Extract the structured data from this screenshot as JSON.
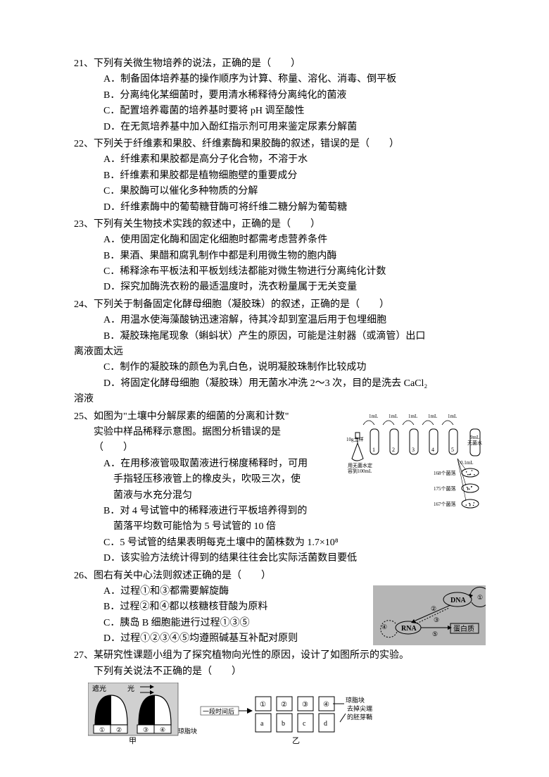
{
  "q21": {
    "stem": "21、下列有关微生物培养的说法，正确的是（　　）",
    "A": "A．制备固体培养基的操作顺序为计算、称量、溶化、消毒、倒平板",
    "B": "B．分离纯化某细菌时，要用清水稀释待分离纯化的菌液",
    "C": "C．配置培养霉菌的培养基时要将 pH 调至酸性",
    "D": "D．在无氮培养基中加入酚红指示剂可用来鉴定尿素分解菌"
  },
  "q22": {
    "stem": "22、下列关于纤维素和果胶、纤维素酶和果胶酶的叙述，错误的是（　　）",
    "A": "A．纤维素和果胶都是高分子化合物，不溶于水",
    "B": "B．纤维素和果胶都是植物细胞壁的重要成分",
    "C": "C．果胶酶可以催化多种物质的分解",
    "D": "D．纤维素酶中的葡萄糖苷酶可将纤维二糖分解为葡萄糖"
  },
  "q23": {
    "stem": "23、下列有关生物技术实践的叙述中，正确的是（　　）",
    "A": "A．使用固定化酶和固定化细胞时都需考虑营养条件",
    "B": "B．果酒、果醋和腐乳制作中都是利用微生物的胞内酶",
    "C": "C．稀释涂布平板法和平板划线法都能对微生物进行分离纯化计数",
    "D": "D．探究加酶洗衣粉的最适温度时，洗衣粉量属于无关变量"
  },
  "q24": {
    "stem": "24、下列关于制备固定化酵母细胞（凝胶珠）的叙述，正确的是（　　）",
    "A": "A．用温水使海藻酸钠迅速溶解，待其冷却到室温后用于包埋细胞",
    "B1": "B．凝胶珠拖尾现象（蝌蚪状）产生的原因，可能是注射器（或滴管）出口",
    "B2": "离液面太远",
    "C": "C．制作的凝胶珠的颜色为乳白色，说明凝胶珠制作比较成功",
    "D1": "D．将固定化酵母细胞（凝胶珠）用无菌水冲洗 2～3 次，目的是洗去 CaCl₂",
    "D2": "溶液"
  },
  "q25": {
    "stem1": "25、如图为\"土壤中分解尿素的细菌的分离和计数\"",
    "stem2": "实验中样品稀释示意图。据图分析错误的是",
    "stem3": "（　　）",
    "A1": "A．在用移液管吸取菌液进行梯度稀释时，可用",
    "A2": "手指轻压移液管上的橡皮头，吹吸三次，使",
    "A3": "菌液与水充分混匀",
    "B1": "B．对 4 号试管中的稀释液进行平板培养得到的",
    "B2": "菌落平均数可能恰为 5 号试管的 10 倍",
    "C": "C．5 号试管的结果表明每克土壤中的菌株数为 1.7×10⁸",
    "D": "D．该实验方法统计得到的结果往往会比实际活菌数目要低",
    "fig": {
      "tube_labels": [
        "1",
        "2",
        "3",
        "4",
        "5"
      ],
      "vol_label": "1mL",
      "soil_label": "10g土样",
      "flask_label": "用无菌水定\n容到100mL",
      "water_label": "9mL\n无菌水",
      "dish_vol": "0.1mL",
      "dish_counts": [
        "168个菌落",
        "175个菌落",
        "167个菌落"
      ]
    }
  },
  "q26": {
    "stem": "26、图右有关中心法则叙述正确的是（　　）",
    "A": "A．过程①和③都需要解旋酶",
    "B": "B．过程②和④都以核糖核苷酸为原料",
    "C": "C．胰岛 B 细胞能进行过程①③⑤",
    "D": "D．过程①②③④⑤均遵照碱基互补配对原则",
    "fig": {
      "dna": "DNA",
      "rna": "RNA",
      "protein": "蛋白质",
      "labels": [
        "①",
        "②",
        "③",
        "④",
        "⑤"
      ]
    }
  },
  "q27": {
    "stem1": "27、某研究性课题小组为了探究植物向光性的原因，设计了如图所示的实验。",
    "stem2": "下列有关说法不正确的是（　　）",
    "fig": {
      "shade": "遮光",
      "light": "光",
      "agar": "琼脂块",
      "time": "一段时间后",
      "jia": "甲",
      "yi": "乙",
      "boxes": [
        "①",
        "②",
        "③",
        "④"
      ],
      "lower": [
        "a",
        "b",
        "c",
        "d"
      ],
      "tip": "去掉尖端\n的胚芽鞘"
    }
  }
}
